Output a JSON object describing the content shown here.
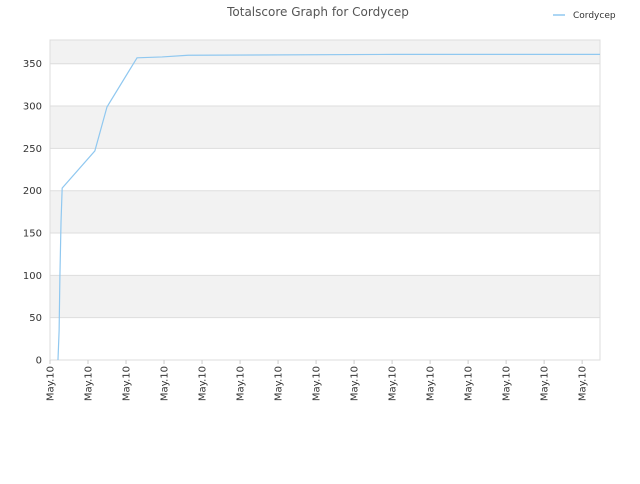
{
  "chart_data": {
    "type": "line",
    "title": "Totalscore Graph for Cordycep",
    "x": [
      0.21,
      0.24,
      0.26,
      0.29,
      0.32,
      1.18,
      1.5,
      2.29,
      2.95,
      3.63,
      9.08,
      14.47
    ],
    "series": [
      {
        "name": "Cordycep",
        "color": "#90c8f0",
        "values": [
          0,
          35,
          97,
          163,
          203,
          247,
          299,
          357,
          358,
          360,
          361,
          361
        ]
      }
    ],
    "xlim": [
      0,
      14.47
    ],
    "xticks": [
      {
        "value": 0,
        "label": "May.10"
      },
      {
        "value": 1,
        "label": "May.10"
      },
      {
        "value": 2,
        "label": "May.10"
      },
      {
        "value": 3,
        "label": "May.10"
      },
      {
        "value": 4,
        "label": "May.10"
      },
      {
        "value": 5,
        "label": "May.10"
      },
      {
        "value": 6,
        "label": "May.10"
      },
      {
        "value": 7,
        "label": "May.10"
      },
      {
        "value": 8,
        "label": "May.10"
      },
      {
        "value": 9,
        "label": "May.10"
      },
      {
        "value": 10,
        "label": "May.10"
      },
      {
        "value": 11,
        "label": "May.10"
      },
      {
        "value": 12,
        "label": "May.10"
      },
      {
        "value": 13,
        "label": "May.10"
      },
      {
        "value": 14,
        "label": "May.10"
      }
    ],
    "ylim": [
      0,
      378
    ],
    "yticks": [
      0,
      50,
      100,
      150,
      200,
      250,
      300,
      350
    ],
    "grid": true,
    "legend": "top-right"
  }
}
